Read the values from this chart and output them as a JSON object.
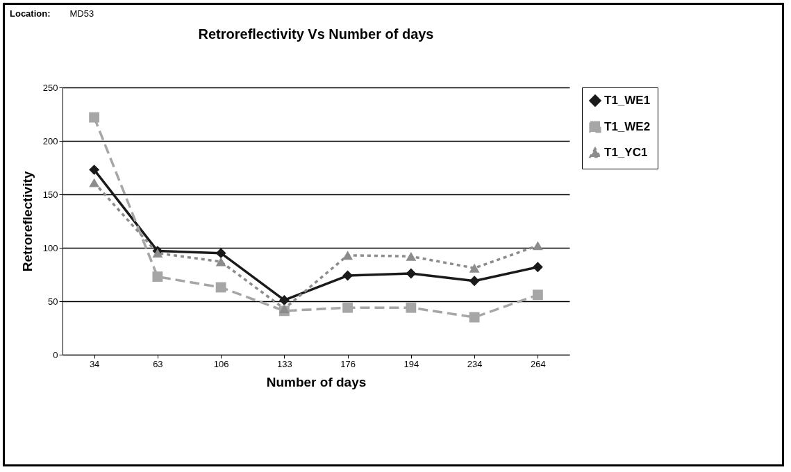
{
  "chart_data": {
    "type": "line",
    "title": "Retroreflectivity Vs Number of days",
    "xlabel": "Number of days",
    "ylabel": "Retroreflectivity",
    "annotations": [
      "Location:",
      "MD53"
    ],
    "categories": [
      "34",
      "63",
      "106",
      "133",
      "176",
      "194",
      "234",
      "264"
    ],
    "series": [
      {
        "name": "T1_WE1",
        "color": "#1a1a1a",
        "marker": "diamond",
        "line_style": "solid",
        "values": [
          173,
          97,
          95,
          51,
          74,
          76,
          69,
          82
        ]
      },
      {
        "name": "T1_WE2",
        "color": "#a6a6a6",
        "marker": "square",
        "line_style": "dashed",
        "values": [
          222,
          73,
          63,
          41,
          44,
          44,
          35,
          56
        ]
      },
      {
        "name": "T1_YC1",
        "color": "#8c8c8c",
        "marker": "triangle",
        "line_style": "dotted",
        "values": [
          161,
          95,
          87,
          43,
          93,
          92,
          81,
          102
        ]
      }
    ],
    "ylim": [
      0,
      250
    ],
    "yticks": [
      0,
      50,
      100,
      150,
      200,
      250
    ],
    "grid": "y",
    "legend": "right"
  }
}
